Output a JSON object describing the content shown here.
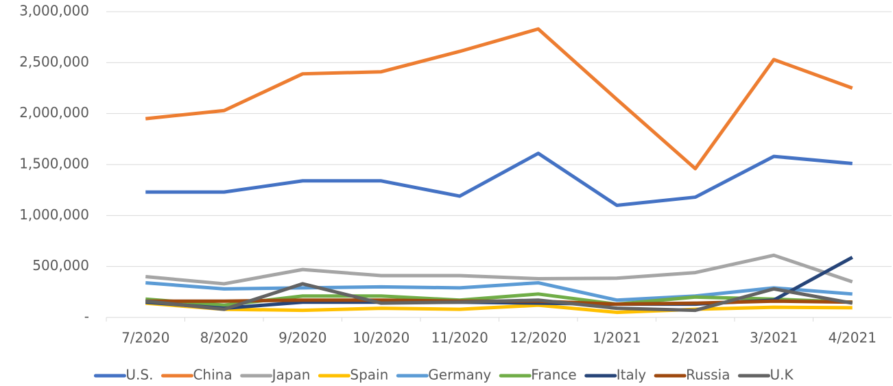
{
  "chart_data": {
    "type": "line",
    "categories": [
      "7/2020",
      "8/2020",
      "9/2020",
      "10/2020",
      "11/2020",
      "12/2020",
      "1/2021",
      "2/2021",
      "3/2021",
      "4/2021"
    ],
    "series": [
      {
        "name": "U.S.",
        "color": "#4472c4",
        "values": [
          1230000,
          1230000,
          1340000,
          1340000,
          1190000,
          1610000,
          1100000,
          1180000,
          1580000,
          1510000
        ]
      },
      {
        "name": "China",
        "color": "#ed7d31",
        "values": [
          1950000,
          2030000,
          2390000,
          2410000,
          2610000,
          2830000,
          2140000,
          1460000,
          2530000,
          2250000
        ]
      },
      {
        "name": "Japan",
        "color": "#a5a5a5",
        "values": [
          400000,
          330000,
          470000,
          410000,
          410000,
          380000,
          385000,
          440000,
          610000,
          350000
        ]
      },
      {
        "name": "Spain",
        "color": "#ffc000",
        "values": [
          140000,
          80000,
          70000,
          90000,
          80000,
          120000,
          50000,
          80000,
          100000,
          95000
        ]
      },
      {
        "name": "Germany",
        "color": "#5b9bd5",
        "values": [
          340000,
          280000,
          290000,
          300000,
          290000,
          340000,
          170000,
          210000,
          290000,
          230000
        ]
      },
      {
        "name": "France",
        "color": "#70ad47",
        "values": [
          180000,
          120000,
          210000,
          210000,
          170000,
          230000,
          130000,
          200000,
          180000,
          150000
        ]
      },
      {
        "name": "Italy",
        "color": "#264478",
        "values": [
          150000,
          90000,
          150000,
          150000,
          150000,
          140000,
          130000,
          130000,
          170000,
          590000
        ]
      },
      {
        "name": "Russia",
        "color": "#9e480e",
        "values": [
          160000,
          160000,
          170000,
          170000,
          160000,
          160000,
          130000,
          140000,
          160000,
          150000
        ]
      },
      {
        "name": "U.K",
        "color": "#636363",
        "values": [
          160000,
          80000,
          330000,
          140000,
          150000,
          170000,
          90000,
          70000,
          280000,
          140000
        ]
      }
    ],
    "ylim": [
      0,
      3000000
    ],
    "yticks": [
      {
        "value": 0,
        "label": "-"
      },
      {
        "value": 500000,
        "label": "500,000"
      },
      {
        "value": 1000000,
        "label": "1,000,000"
      },
      {
        "value": 1500000,
        "label": "1,500,000"
      },
      {
        "value": 2000000,
        "label": "2,000,000"
      },
      {
        "value": 2500000,
        "label": "2,500,000"
      },
      {
        "value": 3000000,
        "label": "3,000,000"
      }
    ],
    "grid": true,
    "legend": "bottom"
  }
}
